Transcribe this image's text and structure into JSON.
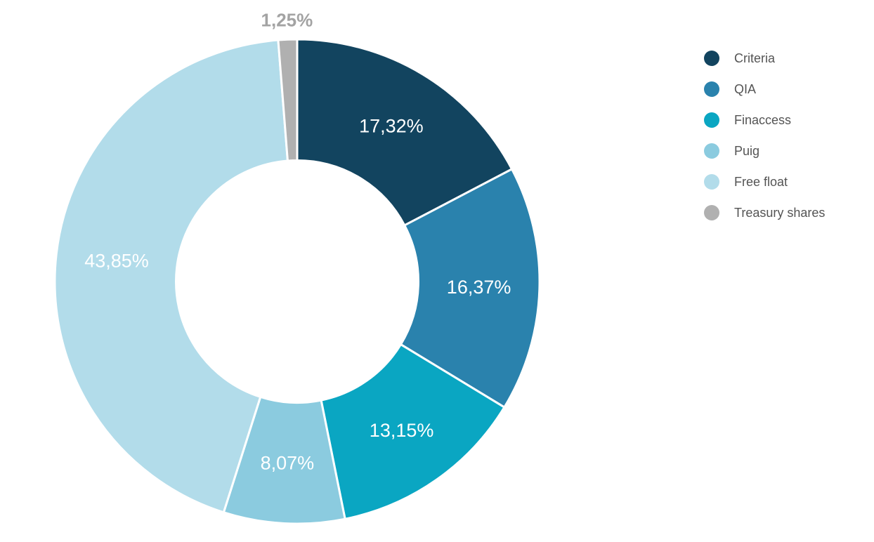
{
  "chart_data": {
    "type": "pie",
    "subtype": "donut",
    "title": "",
    "unit": "%",
    "decimal_separator": ",",
    "categories": [
      "Criteria",
      "QIA",
      "Finaccess",
      "Puig",
      "Free float",
      "Treasury shares"
    ],
    "values": [
      17.32,
      16.37,
      13.15,
      8.07,
      43.85,
      1.25
    ],
    "value_labels": [
      "17,32%",
      "16,37%",
      "13,15%",
      "8,07%",
      "43,85%",
      "1,25%"
    ],
    "colors": [
      "#12445F",
      "#2A82AD",
      "#0AA6C2",
      "#8BCBDF",
      "#B2DCEA",
      "#B0B0B0"
    ],
    "label_placement": [
      "inside",
      "inside",
      "inside",
      "inside",
      "inside",
      "outside"
    ],
    "start_angle_deg": 0,
    "direction": "clockwise",
    "donut_hole_ratio": 0.5,
    "legend_position": "right",
    "styles": {
      "inside_label_color": "#FFFFFF",
      "outside_label_color": "#A3A3A3",
      "legend_text_color": "#545454",
      "slice_border_color": "#FFFFFF",
      "background_color": "#FFFFFF"
    }
  }
}
